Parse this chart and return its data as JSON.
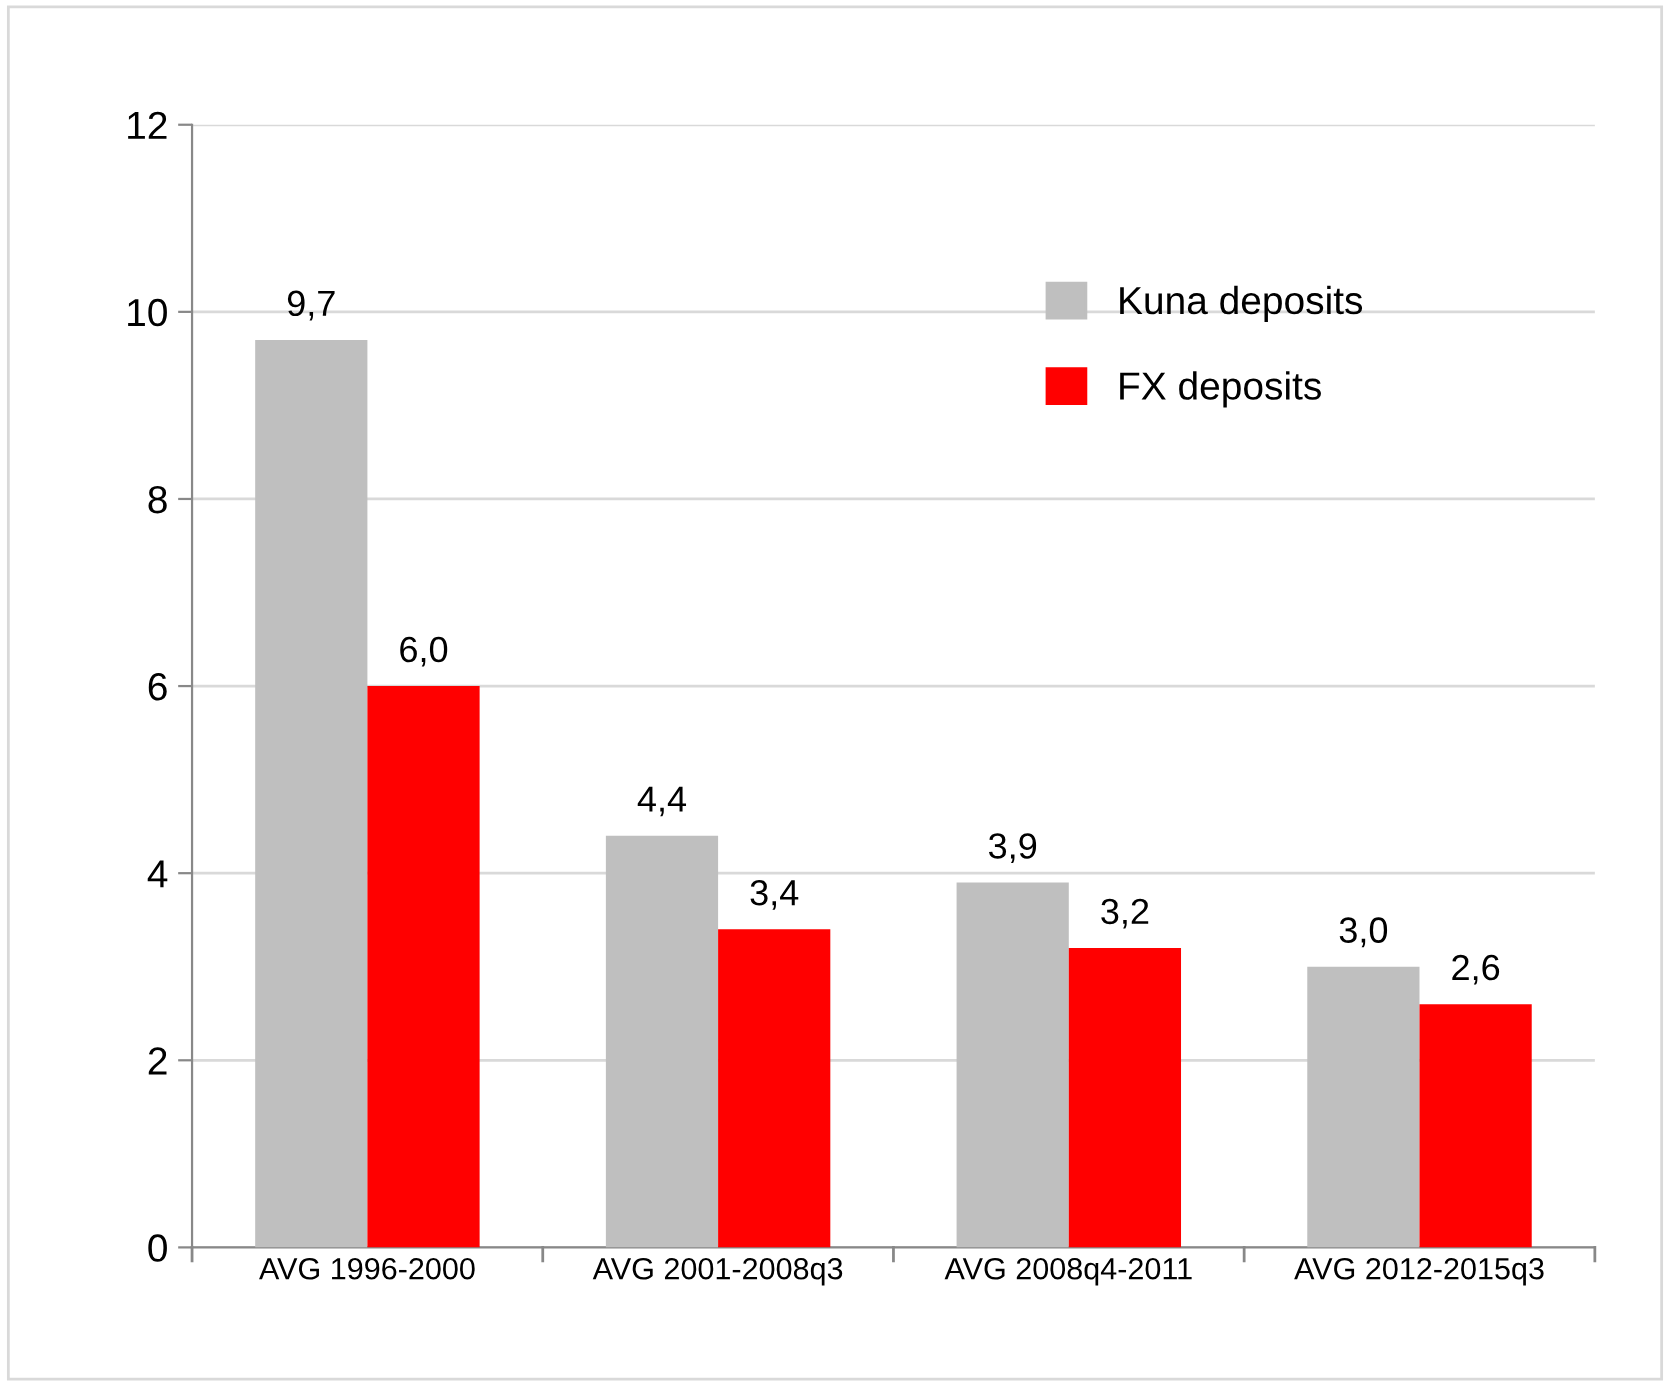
{
  "chart_data": {
    "type": "bar",
    "categories": [
      "AVG 1996-2000",
      "AVG 2001-2008q3",
      "AVG 2008q4-2011",
      "AVG 2012-2015q3"
    ],
    "series": [
      {
        "name": "Kuna deposits",
        "color": "#bfbfbf",
        "values": [
          9.7,
          4.4,
          3.9,
          3.0
        ],
        "value_labels": [
          "9,7",
          "4,4",
          "3,9",
          "3,0"
        ]
      },
      {
        "name": "FX deposits",
        "color": "#ff0000",
        "values": [
          6.0,
          3.4,
          3.2,
          2.6
        ],
        "value_labels": [
          "6,0",
          "3,4",
          "3,2",
          "2,6"
        ]
      }
    ],
    "ylim": [
      0,
      12
    ],
    "yticks": [
      0,
      2,
      4,
      6,
      8,
      10,
      12
    ],
    "grid": "y",
    "legend": "top right"
  }
}
